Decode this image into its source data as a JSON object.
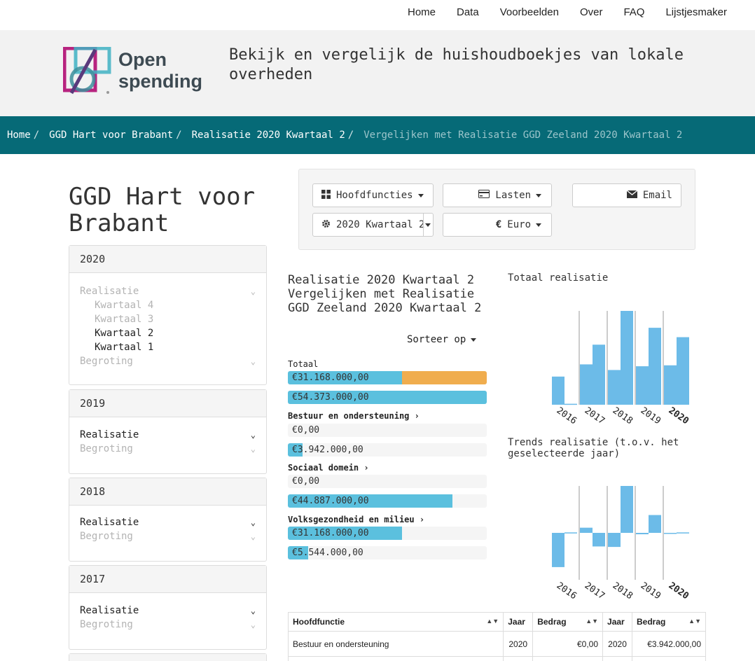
{
  "nav": {
    "items": [
      "Home",
      "Data",
      "Voorbeelden",
      "Over",
      "FAQ",
      "Lijstjesmaker"
    ]
  },
  "header": {
    "logo_line1": "Open",
    "logo_line2": "spending",
    "tagline": "Bekijk en vergelijk de huishoudboekjes van lokale overheden"
  },
  "breadcrumb": [
    "Home",
    "GGD Hart voor Brabant",
    "Realisatie 2020 Kwartaal 2",
    "Vergelijken met Realisatie GGD Zeeland 2020 Kwartaal 2"
  ],
  "entity_title": "GGD Hart voor Brabant",
  "years": [
    {
      "year": "2020",
      "realisatie": "Realisatie",
      "kwartalen": [
        "Kwartaal 4",
        "Kwartaal 3",
        "Kwartaal 2",
        "Kwartaal 1"
      ],
      "begroting": "Begroting"
    },
    {
      "year": "2019",
      "realisatie": "Realisatie",
      "begroting": "Begroting"
    },
    {
      "year": "2018",
      "realisatie": "Realisatie",
      "begroting": "Begroting"
    },
    {
      "year": "2017",
      "realisatie": "Realisatie",
      "begroting": "Begroting"
    }
  ],
  "controls": {
    "hoofdfuncties": "Hoofdfuncties",
    "lasten": "Lasten",
    "email": "Email",
    "period": "2020 Kwartaal 2",
    "currency": "Euro",
    "currency_symbol": "€"
  },
  "comparison": {
    "title": "Realisatie 2020 Kwartaal 2 Vergelijken met Realisatie GGD Zeeland 2020 Kwartaal 2",
    "sort_label": "Sorteer op",
    "totaal_label": "Totaal",
    "totaal_values": [
      "€31.168.000,00",
      "€54.373.000,00"
    ],
    "totaal_fractions": [
      0.573,
      1.0
    ],
    "categories": [
      {
        "name": "Bestuur en ondersteuning",
        "values": [
          "€0,00",
          "€3.942.000,00"
        ],
        "fractions": [
          0,
          0.073
        ]
      },
      {
        "name": "Sociaal domein",
        "values": [
          "€0,00",
          "€44.887.000,00"
        ],
        "fractions": [
          0,
          0.826
        ]
      },
      {
        "name": "Volksgezondheid en milieu",
        "values": [
          "€31.168.000,00",
          "€5.544.000,00"
        ],
        "fractions": [
          0.573,
          0.102
        ]
      }
    ]
  },
  "chart_data": [
    {
      "type": "bar",
      "title": "Totaal realisatie",
      "categories": [
        "2016",
        "2017",
        "2018",
        "2019",
        "2020"
      ],
      "highlight": "2020",
      "series": [
        {
          "values": [
            0.3,
            0.43,
            0.37,
            0.41,
            0.42
          ]
        },
        {
          "values": [
            0.01,
            0.64,
            1.0,
            0.82,
            0.72
          ]
        }
      ],
      "ylim": [
        0,
        1
      ],
      "color": "#6cbbe8"
    },
    {
      "type": "bar",
      "title": "Trends realisatie (t.o.v. het geselecteerde jaar)",
      "categories": [
        "2016",
        "2017",
        "2018",
        "2019",
        "2020"
      ],
      "highlight": "2020",
      "series": [
        {
          "values": [
            -0.73,
            0.11,
            -0.3,
            -0.03,
            0
          ]
        },
        {
          "values": [
            0.01,
            -0.29,
            1.0,
            0.38,
            0.01
          ]
        }
      ],
      "ylim": [
        -1,
        1
      ],
      "color": "#6cbbe8"
    }
  ],
  "table": {
    "headers": [
      "Hoofdfunctie",
      "Jaar",
      "Bedrag",
      "Jaar",
      "Bedrag"
    ],
    "rows": [
      [
        "Bestuur en ondersteuning",
        "2020",
        "€0,00",
        "2020",
        "€3.942.000,00"
      ]
    ]
  }
}
